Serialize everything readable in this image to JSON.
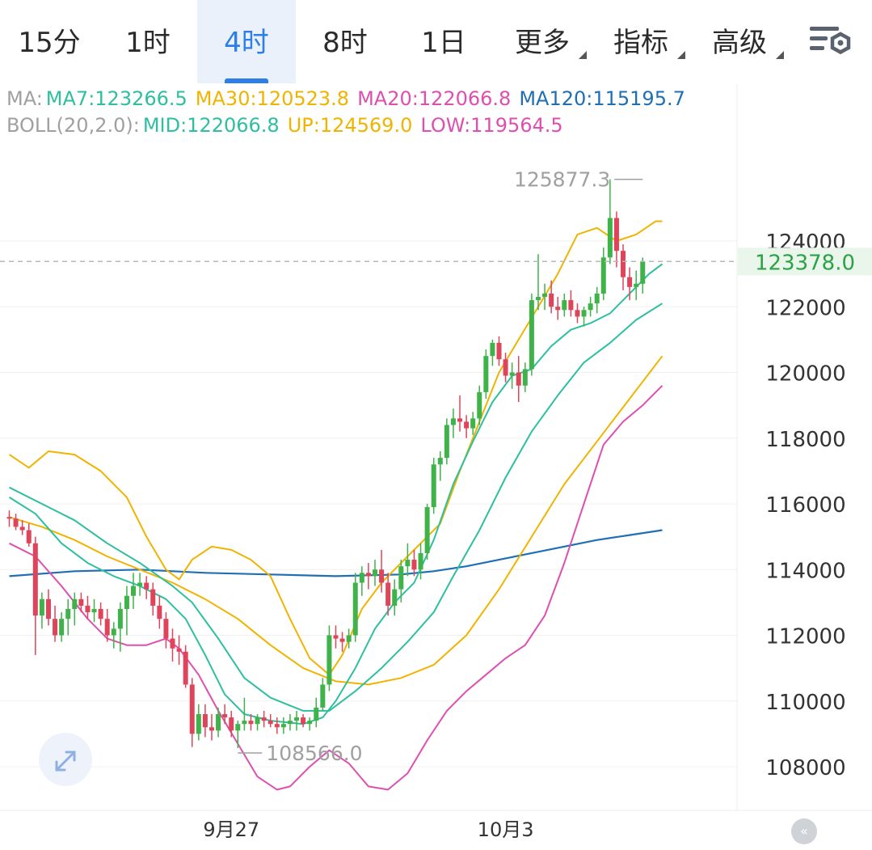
{
  "tabs": [
    {
      "label": "15分",
      "active": false,
      "dropdown": false
    },
    {
      "label": "1时",
      "active": false,
      "dropdown": false
    },
    {
      "label": "4时",
      "active": true,
      "dropdown": false
    },
    {
      "label": "8时",
      "active": false,
      "dropdown": false
    },
    {
      "label": "1日",
      "active": false,
      "dropdown": false
    },
    {
      "label": "更多",
      "active": false,
      "dropdown": true
    },
    {
      "label": "指标",
      "active": false,
      "dropdown": true
    },
    {
      "label": "高级",
      "active": false,
      "dropdown": true
    }
  ],
  "legend": {
    "ma_prefix": "MA:",
    "ma7": "MA7:123266.5",
    "ma30": "MA30:120523.8",
    "ma20": "MA20:122066.8",
    "ma120": "MA120:115195.7",
    "boll_prefix": "BOLL(20,2.0):",
    "mid": "MID:122066.8",
    "up": "UP:124569.0",
    "low": "LOW:119564.5"
  },
  "colors": {
    "ma7": "#2ebfa0",
    "ma30": "#f0b400",
    "ma20": "#de4fb0",
    "ma120": "#1f6fb5",
    "up_candle": "#3fb24a",
    "down_candle": "#e0445a",
    "label_gray": "#a0a0a0",
    "price_green": "#2aa345"
  },
  "chart_data": {
    "type": "candlestick",
    "y_axis_ticks": [
      124000,
      122000,
      120000,
      118000,
      116000,
      114000,
      112000,
      110000,
      108000
    ],
    "ylim": [
      107000,
      126500
    ],
    "x_labels": [
      {
        "label": "9月27",
        "index": 34
      },
      {
        "label": "10月3",
        "index": 76
      }
    ],
    "current_price": 123378.0,
    "current_price_label": "123378.0",
    "high_marker": {
      "label": "125877.3",
      "value": 125877.3,
      "index": 97
    },
    "low_marker": {
      "label": "108566.0",
      "value": 108566.0,
      "index": 35
    },
    "candles": [
      [
        115600,
        115800,
        115300,
        115550
      ],
      [
        115550,
        115700,
        115200,
        115300
      ],
      [
        115300,
        115500,
        115050,
        115200
      ],
      [
        115200,
        115400,
        114700,
        114800
      ],
      [
        114800,
        115000,
        111400,
        112600
      ],
      [
        112600,
        113300,
        112200,
        113100
      ],
      [
        113100,
        113400,
        112300,
        112500
      ],
      [
        112500,
        112900,
        111800,
        112000
      ],
      [
        112000,
        112700,
        111800,
        112500
      ],
      [
        112500,
        113100,
        112000,
        112800
      ],
      [
        112800,
        113300,
        112300,
        113100
      ],
      [
        113100,
        113300,
        112700,
        112900
      ],
      [
        112900,
        113200,
        112500,
        112700
      ],
      [
        112700,
        113100,
        112400,
        112800
      ],
      [
        112800,
        113000,
        112300,
        112500
      ],
      [
        112500,
        112800,
        111800,
        112000
      ],
      [
        112000,
        112400,
        111600,
        112200
      ],
      [
        112200,
        113000,
        111500,
        112800
      ],
      [
        112800,
        113500,
        112000,
        113200
      ],
      [
        113200,
        113900,
        112800,
        113500
      ],
      [
        113500,
        113900,
        113200,
        113600
      ],
      [
        113600,
        113800,
        113100,
        113400
      ],
      [
        113400,
        113600,
        112600,
        112900
      ],
      [
        112900,
        113200,
        112200,
        112500
      ],
      [
        112500,
        112700,
        111600,
        111900
      ],
      [
        111900,
        112200,
        111200,
        111600
      ],
      [
        111600,
        112000,
        111100,
        111500
      ],
      [
        111500,
        111700,
        110400,
        110500
      ],
      [
        110500,
        110700,
        108600,
        109000
      ],
      [
        109000,
        109900,
        108800,
        109600
      ],
      [
        109600,
        109900,
        108900,
        109200
      ],
      [
        109200,
        109600,
        108800,
        109100
      ],
      [
        109100,
        109800,
        108900,
        109600
      ],
      [
        109600,
        109900,
        109300,
        109500
      ],
      [
        109500,
        109700,
        108900,
        109100
      ],
      [
        109100,
        109400,
        108566,
        109300
      ],
      [
        109300,
        110100,
        109100,
        109400
      ],
      [
        109400,
        109600,
        109100,
        109300
      ],
      [
        109300,
        109600,
        109100,
        109500
      ],
      [
        109500,
        109700,
        109200,
        109400
      ],
      [
        109400,
        109600,
        109200,
        109300
      ],
      [
        109300,
        109500,
        109000,
        109200
      ],
      [
        109200,
        109500,
        109000,
        109300
      ],
      [
        109300,
        109600,
        109100,
        109400
      ],
      [
        109400,
        109700,
        109100,
        109500
      ],
      [
        109500,
        109600,
        109200,
        109300
      ],
      [
        109300,
        109500,
        109100,
        109400
      ],
      [
        109400,
        110100,
        109200,
        109800
      ],
      [
        109800,
        110700,
        109700,
        110500
      ],
      [
        110500,
        112300,
        110300,
        112000
      ],
      [
        112000,
        112300,
        111600,
        111900
      ],
      [
        111900,
        112100,
        111500,
        111800
      ],
      [
        111800,
        112200,
        111600,
        112000
      ],
      [
        112000,
        113900,
        111800,
        113600
      ],
      [
        113600,
        114100,
        113200,
        113900
      ],
      [
        113900,
        114200,
        113400,
        113800
      ],
      [
        113800,
        114300,
        113500,
        114000
      ],
      [
        114000,
        114600,
        113300,
        113600
      ],
      [
        113600,
        113900,
        112600,
        112900
      ],
      [
        112900,
        113700,
        112600,
        113400
      ],
      [
        113400,
        114300,
        113000,
        114100
      ],
      [
        114100,
        114800,
        113800,
        114300
      ],
      [
        114300,
        114600,
        113800,
        114000
      ],
      [
        114000,
        114800,
        113700,
        114500
      ],
      [
        114500,
        116000,
        114300,
        115900
      ],
      [
        115900,
        117400,
        115700,
        117200
      ],
      [
        117200,
        117600,
        116700,
        117400
      ],
      [
        117400,
        118600,
        117200,
        118400
      ],
      [
        118400,
        118900,
        118000,
        118600
      ],
      [
        118600,
        119300,
        118200,
        118500
      ],
      [
        118500,
        118700,
        118000,
        118300
      ],
      [
        118300,
        118800,
        118100,
        118600
      ],
      [
        118600,
        119600,
        118400,
        119400
      ],
      [
        119400,
        120700,
        119200,
        120500
      ],
      [
        120500,
        121000,
        120200,
        120900
      ],
      [
        120900,
        121100,
        120200,
        120400
      ],
      [
        120400,
        120600,
        119700,
        119900
      ],
      [
        119900,
        120300,
        119500,
        120000
      ],
      [
        120000,
        120500,
        119100,
        119600
      ],
      [
        119600,
        120300,
        119400,
        120100
      ],
      [
        120100,
        122400,
        119900,
        122200
      ],
      [
        122200,
        123600,
        121900,
        122300
      ],
      [
        122300,
        122700,
        121900,
        122400
      ],
      [
        122400,
        122800,
        121800,
        122000
      ],
      [
        122000,
        122300,
        121600,
        121900
      ],
      [
        121900,
        122400,
        121700,
        122200
      ],
      [
        122200,
        122500,
        121700,
        121900
      ],
      [
        121900,
        122100,
        121500,
        121700
      ],
      [
        121700,
        122000,
        121400,
        121900
      ],
      [
        121900,
        122300,
        121700,
        122100
      ],
      [
        122100,
        122600,
        121800,
        122400
      ],
      [
        122400,
        123800,
        122200,
        123500
      ],
      [
        123500,
        125877.3,
        123300,
        124700
      ],
      [
        124700,
        124900,
        123200,
        123700
      ],
      [
        123700,
        123900,
        122500,
        122900
      ],
      [
        122900,
        123200,
        122200,
        122600
      ],
      [
        122600,
        123100,
        122200,
        122700
      ],
      [
        122700,
        123500,
        122400,
        123378
      ]
    ],
    "lines": {
      "ma7_teal": [
        [
          0,
          116200
        ],
        [
          4,
          115700
        ],
        [
          8,
          114800
        ],
        [
          12,
          114200
        ],
        [
          16,
          113800
        ],
        [
          20,
          113500
        ],
        [
          24,
          113100
        ],
        [
          27,
          112500
        ],
        [
          30,
          111400
        ],
        [
          33,
          110200
        ],
        [
          36,
          109600
        ],
        [
          40,
          109400
        ],
        [
          45,
          109300
        ],
        [
          48,
          109500
        ],
        [
          50,
          110000
        ],
        [
          53,
          111000
        ],
        [
          56,
          112200
        ],
        [
          59,
          113000
        ],
        [
          62,
          113600
        ],
        [
          65,
          114900
        ],
        [
          68,
          116600
        ],
        [
          71,
          117900
        ],
        [
          74,
          119100
        ],
        [
          77,
          119900
        ],
        [
          80,
          120100
        ],
        [
          83,
          120800
        ],
        [
          86,
          121300
        ],
        [
          89,
          121500
        ],
        [
          92,
          121800
        ],
        [
          95,
          122400
        ],
        [
          98,
          123000
        ],
        [
          100,
          123300
        ]
      ],
      "ma20_teal": [
        [
          0,
          116500
        ],
        [
          5,
          116000
        ],
        [
          10,
          115500
        ],
        [
          15,
          114800
        ],
        [
          20,
          114200
        ],
        [
          25,
          113500
        ],
        [
          28,
          113000
        ],
        [
          32,
          111900
        ],
        [
          36,
          110700
        ],
        [
          40,
          110100
        ],
        [
          45,
          109700
        ],
        [
          49,
          109700
        ],
        [
          53,
          110300
        ],
        [
          57,
          111000
        ],
        [
          61,
          111800
        ],
        [
          65,
          112700
        ],
        [
          68,
          113800
        ],
        [
          72,
          115200
        ],
        [
          76,
          116800
        ],
        [
          80,
          118200
        ],
        [
          84,
          119300
        ],
        [
          88,
          120300
        ],
        [
          92,
          120900
        ],
        [
          96,
          121600
        ],
        [
          100,
          122100
        ]
      ],
      "ma30_gold": [
        [
          0,
          115600
        ],
        [
          5,
          115300
        ],
        [
          10,
          114900
        ],
        [
          15,
          114400
        ],
        [
          20,
          114000
        ],
        [
          25,
          113600
        ],
        [
          30,
          113100
        ],
        [
          35,
          112500
        ],
        [
          40,
          111700
        ],
        [
          45,
          111000
        ],
        [
          50,
          110600
        ],
        [
          55,
          110500
        ],
        [
          60,
          110700
        ],
        [
          65,
          111100
        ],
        [
          70,
          112000
        ],
        [
          75,
          113400
        ],
        [
          80,
          115000
        ],
        [
          85,
          116600
        ],
        [
          90,
          117900
        ],
        [
          95,
          119200
        ],
        [
          100,
          120500
        ]
      ],
      "ma120_blue": [
        [
          0,
          113800
        ],
        [
          10,
          113950
        ],
        [
          20,
          114000
        ],
        [
          30,
          113900
        ],
        [
          40,
          113850
        ],
        [
          50,
          113800
        ],
        [
          60,
          113850
        ],
        [
          65,
          113950
        ],
        [
          70,
          114100
        ],
        [
          75,
          114300
        ],
        [
          80,
          114500
        ],
        [
          85,
          114700
        ],
        [
          90,
          114900
        ],
        [
          95,
          115050
        ],
        [
          100,
          115200
        ]
      ],
      "boll_up_gold": [
        [
          0,
          117500
        ],
        [
          3,
          117100
        ],
        [
          6,
          117600
        ],
        [
          10,
          117500
        ],
        [
          14,
          117000
        ],
        [
          18,
          116200
        ],
        [
          21,
          115000
        ],
        [
          24,
          114000
        ],
        [
          26,
          113700
        ],
        [
          28,
          114300
        ],
        [
          31,
          114700
        ],
        [
          34,
          114600
        ],
        [
          37,
          114300
        ],
        [
          40,
          113800
        ],
        [
          43,
          112500
        ],
        [
          46,
          111300
        ],
        [
          49,
          110800
        ],
        [
          51,
          111400
        ],
        [
          54,
          112800
        ],
        [
          57,
          113600
        ],
        [
          60,
          114200
        ],
        [
          63,
          114800
        ],
        [
          66,
          115400
        ],
        [
          69,
          117000
        ],
        [
          72,
          118500
        ],
        [
          75,
          120000
        ],
        [
          78,
          121000
        ],
        [
          81,
          122000
        ],
        [
          84,
          123000
        ],
        [
          87,
          124200
        ],
        [
          90,
          124400
        ],
        [
          93,
          124000
        ],
        [
          96,
          124200
        ],
        [
          99,
          124600
        ],
        [
          100,
          124600
        ]
      ],
      "boll_low_pink": [
        [
          0,
          114800
        ],
        [
          4,
          114400
        ],
        [
          8,
          113500
        ],
        [
          12,
          112500
        ],
        [
          15,
          111900
        ],
        [
          18,
          111700
        ],
        [
          21,
          111700
        ],
        [
          24,
          111900
        ],
        [
          26,
          111600
        ],
        [
          29,
          110800
        ],
        [
          32,
          109700
        ],
        [
          35,
          108700
        ],
        [
          38,
          107700
        ],
        [
          41,
          107300
        ],
        [
          43,
          107400
        ],
        [
          46,
          108000
        ],
        [
          49,
          108500
        ],
        [
          52,
          108100
        ],
        [
          55,
          107400
        ],
        [
          58,
          107300
        ],
        [
          61,
          107800
        ],
        [
          64,
          108800
        ],
        [
          67,
          109700
        ],
        [
          70,
          110300
        ],
        [
          73,
          110800
        ],
        [
          76,
          111300
        ],
        [
          79,
          111700
        ],
        [
          82,
          112600
        ],
        [
          85,
          114200
        ],
        [
          88,
          116000
        ],
        [
          91,
          117800
        ],
        [
          94,
          118500
        ],
        [
          97,
          119000
        ],
        [
          100,
          119600
        ]
      ]
    }
  }
}
